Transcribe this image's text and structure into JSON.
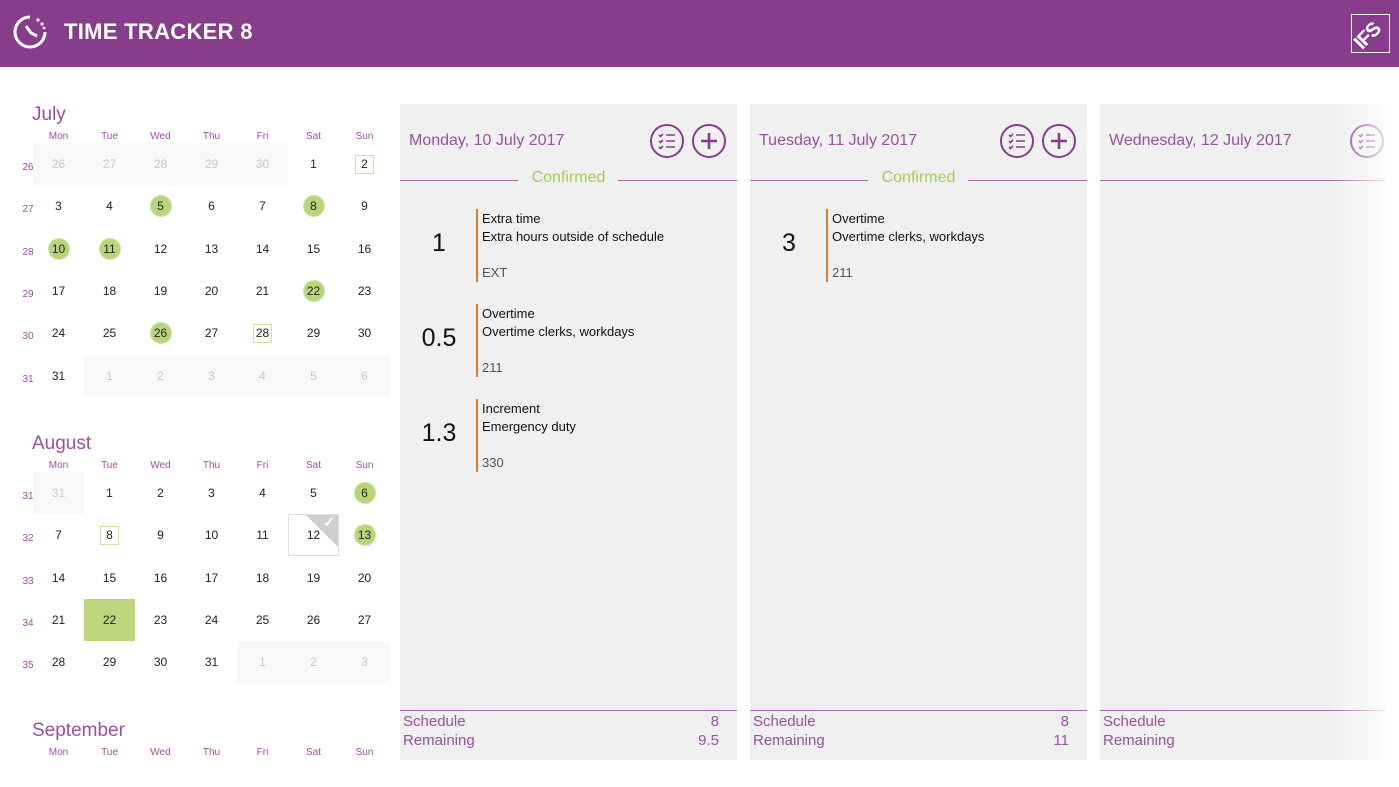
{
  "app": {
    "title": "TIME TRACKER 8",
    "logo_text": "IFS",
    "colors": {
      "brand": "#873d8b",
      "accent_green": "#b9d57a",
      "entry_bar": "#e07a2c"
    }
  },
  "calendar": {
    "weekdays": [
      "Mon",
      "Tue",
      "Wed",
      "Thu",
      "Fri",
      "Sat",
      "Sun"
    ],
    "months": [
      {
        "name": "July",
        "circled": [
          "5",
          "8",
          "10",
          "11",
          "22",
          "26"
        ],
        "outlined": [
          "2",
          "28"
        ],
        "selected": null,
        "checked": null,
        "weeks": [
          {
            "week": "26",
            "days": [
              "26",
              "27",
              "28",
              "29",
              "30",
              "1",
              "2"
            ],
            "muted": [
              0,
              1,
              2,
              3,
              4
            ]
          },
          {
            "week": "27",
            "days": [
              "3",
              "4",
              "5",
              "6",
              "7",
              "8",
              "9"
            ],
            "muted": []
          },
          {
            "week": "28",
            "days": [
              "10",
              "11",
              "12",
              "13",
              "14",
              "15",
              "16"
            ],
            "muted": []
          },
          {
            "week": "29",
            "days": [
              "17",
              "18",
              "19",
              "20",
              "21",
              "22",
              "23"
            ],
            "muted": []
          },
          {
            "week": "30",
            "days": [
              "24",
              "25",
              "26",
              "27",
              "28",
              "29",
              "30"
            ],
            "muted": []
          },
          {
            "week": "31",
            "days": [
              "31",
              "1",
              "2",
              "3",
              "4",
              "5",
              "6"
            ],
            "muted": [
              1,
              2,
              3,
              4,
              5,
              6
            ]
          }
        ]
      },
      {
        "name": "August",
        "circled": [
          "6",
          "13"
        ],
        "outlined": [
          "8"
        ],
        "selected": "22",
        "checked": "12",
        "weeks": [
          {
            "week": "31",
            "days": [
              "31",
              "1",
              "2",
              "3",
              "4",
              "5",
              "6"
            ],
            "muted": [
              0
            ]
          },
          {
            "week": "32",
            "days": [
              "7",
              "8",
              "9",
              "10",
              "11",
              "12",
              "13"
            ],
            "muted": []
          },
          {
            "week": "33",
            "days": [
              "14",
              "15",
              "16",
              "17",
              "18",
              "19",
              "20"
            ],
            "muted": []
          },
          {
            "week": "34",
            "days": [
              "21",
              "22",
              "23",
              "24",
              "25",
              "26",
              "27"
            ],
            "muted": []
          },
          {
            "week": "35",
            "days": [
              "28",
              "29",
              "30",
              "31",
              "1",
              "2",
              "3"
            ],
            "muted": [
              4,
              5,
              6
            ]
          }
        ]
      },
      {
        "name": "September",
        "weeks": []
      }
    ]
  },
  "days": [
    {
      "date": "Monday, 10 July 2017",
      "status": "Confirmed",
      "show_add": true,
      "entries": [
        {
          "hours": "1",
          "type": "Extra time",
          "description": "Extra hours outside of schedule",
          "code": "EXT"
        },
        {
          "hours": "0.5",
          "type": "Overtime",
          "description": "Overtime clerks, workdays",
          "code": "211"
        },
        {
          "hours": "1.3",
          "type": "Increment",
          "description": "Emergency duty",
          "code": "330"
        }
      ],
      "schedule_label": "Schedule",
      "schedule": "8",
      "remaining_label": "Remaining",
      "remaining": "9.5"
    },
    {
      "date": "Tuesday, 11 July 2017",
      "status": "Confirmed",
      "show_add": true,
      "entries": [
        {
          "hours": "3",
          "type": "Overtime",
          "description": "Overtime clerks, workdays",
          "code": "211"
        }
      ],
      "schedule_label": "Schedule",
      "schedule": "8",
      "remaining_label": "Remaining",
      "remaining": "11"
    },
    {
      "date": "Wednesday, 12 July 2017",
      "status": "",
      "show_add": false,
      "entries": [],
      "schedule_label": "Schedule",
      "schedule": "",
      "remaining_label": "Remaining",
      "remaining": ""
    }
  ]
}
